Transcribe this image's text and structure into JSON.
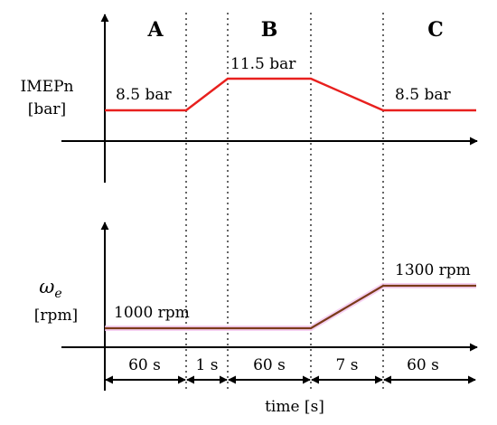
{
  "phases": {
    "a": "A",
    "b": "B",
    "c": "C"
  },
  "top_plot": {
    "ylabel_line1": "IMEPn",
    "ylabel_line2": "[bar]",
    "label_a": "8.5 bar",
    "label_b": "11.5 bar",
    "label_c": "8.5 bar",
    "color": "#e8201e"
  },
  "bottom_plot": {
    "ylabel_symbol": "ω",
    "ylabel_subscript": "e",
    "ylabel_unit": "[rpm]",
    "label_low": "1000 rpm",
    "label_high": "1300 rpm",
    "color": "#7b3b1a"
  },
  "timeline": {
    "segments": [
      "60 s",
      "1 s",
      "60 s",
      "7 s",
      "60 s"
    ],
    "xlabel": "time [s]"
  }
}
